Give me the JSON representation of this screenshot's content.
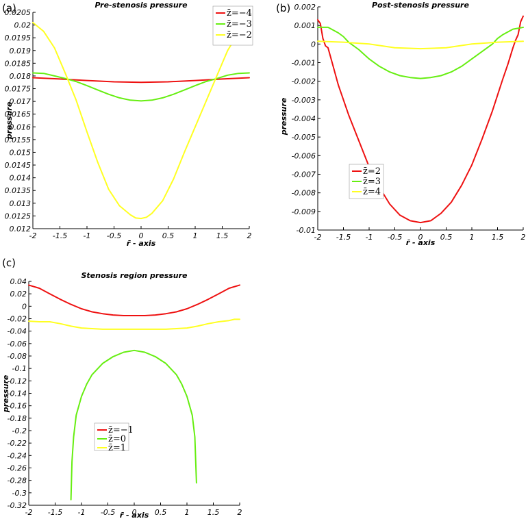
{
  "colors": {
    "red": "#ee1111",
    "green": "#66ee11",
    "yellow": "#ffff22"
  },
  "chart_data": [
    {
      "panel_label": "(a)",
      "type": "line",
      "title": "Pre-stenosis pressure",
      "xlabel": "r̄ - axis",
      "ylabel": "pressure",
      "xlim": [
        -2,
        2
      ],
      "ylim": [
        0.012,
        0.0205
      ],
      "xticks": [
        "-2",
        "-1.5",
        "-1",
        "-0.5",
        "0",
        "0.5",
        "1",
        "1.5",
        "2"
      ],
      "yticks": [
        "0.0205",
        "0.02",
        "0.0195",
        "0.019",
        "0.0185",
        "0.018",
        "0.0175",
        "0.017",
        "0.0165",
        "0.016",
        "0.0155",
        "0.015",
        "0.0145",
        "0.014",
        "0.0135",
        "0.013",
        "0.0125",
        "0.012"
      ],
      "legend_position": "top-right",
      "series": [
        {
          "name": "z̄=−4",
          "color": "red",
          "x": [
            -2,
            -1.5,
            -1,
            -0.5,
            0,
            0.5,
            1,
            1.5,
            2
          ],
          "y": [
            0.01793,
            0.01788,
            0.01782,
            0.01777,
            0.01775,
            0.01777,
            0.01782,
            0.01788,
            0.01793
          ]
        },
        {
          "name": "z̄=−3",
          "color": "green",
          "x": [
            -2,
            -1.8,
            -1.6,
            -1.4,
            -1.2,
            -1.0,
            -0.8,
            -0.6,
            -0.4,
            -0.2,
            0,
            0.2,
            0.4,
            0.6,
            0.8,
            1.0,
            1.2,
            1.4,
            1.6,
            1.8,
            2
          ],
          "y": [
            0.01812,
            0.0181,
            0.018,
            0.0179,
            0.01778,
            0.01762,
            0.01745,
            0.01728,
            0.01714,
            0.01705,
            0.01702,
            0.01705,
            0.01714,
            0.01728,
            0.01745,
            0.01762,
            0.01778,
            0.0179,
            0.01803,
            0.0181,
            0.01812
          ]
        },
        {
          "name": "z̄=−2",
          "color": "yellow",
          "x": [
            -2,
            -1.8,
            -1.6,
            -1.4,
            -1.2,
            -1.0,
            -0.8,
            -0.6,
            -0.4,
            -0.2,
            -0.1,
            0,
            0.1,
            0.2,
            0.4,
            0.6,
            0.8,
            1.0,
            1.2,
            1.4,
            1.6,
            1.8,
            2
          ],
          "y": [
            0.0201,
            0.01975,
            0.0191,
            0.0181,
            0.01705,
            0.0158,
            0.0146,
            0.01355,
            0.0129,
            0.01255,
            0.01242,
            0.0124,
            0.01245,
            0.0126,
            0.0131,
            0.01395,
            0.015,
            0.016,
            0.017,
            0.018,
            0.019,
            0.0197,
            0.0201
          ]
        }
      ]
    },
    {
      "panel_label": "(b)",
      "type": "line",
      "title": "Post-stenosis pressure",
      "xlabel": "r̄ - axis",
      "ylabel": "pressure",
      "xlim": [
        -2,
        2
      ],
      "ylim": [
        -0.01,
        0.002
      ],
      "xticks": [
        "-2",
        "-1.5",
        "-1",
        "-0.5",
        "0",
        "0.5",
        "1",
        "1.5",
        "2"
      ],
      "yticks": [
        "0.002",
        "0.001",
        "0",
        "-0.001",
        "-0.002",
        "-0.003",
        "-0.004",
        "-0.005",
        "-0.006",
        "-0.007",
        "-0.008",
        "-0.009",
        "-0.01"
      ],
      "legend_position": "center-left",
      "series": [
        {
          "name": "z̄=2",
          "color": "red",
          "x": [
            -2,
            -1.95,
            -1.9,
            -1.85,
            -1.8,
            -1.7,
            -1.6,
            -1.4,
            -1.2,
            -1.0,
            -0.8,
            -0.6,
            -0.4,
            -0.2,
            0,
            0.2,
            0.4,
            0.6,
            0.8,
            1.0,
            1.2,
            1.4,
            1.6,
            1.7,
            1.8,
            1.85,
            1.9,
            1.95,
            2
          ],
          "y": [
            0.0013,
            0.0011,
            0.0003,
            -0.0001,
            -0.0002,
            -0.0012,
            -0.0022,
            -0.0038,
            -0.0052,
            -0.0066,
            -0.0077,
            -0.0086,
            -0.0092,
            -0.0095,
            -0.0096,
            -0.0095,
            -0.0091,
            -0.0085,
            -0.0076,
            -0.0065,
            -0.0051,
            -0.0036,
            -0.0019,
            -0.0011,
            -0.0002,
            0.0002,
            0.0005,
            0.0012,
            0.0015
          ]
        },
        {
          "name": "z̄=3",
          "color": "green",
          "x": [
            -2,
            -1.8,
            -1.6,
            -1.5,
            -1.4,
            -1.2,
            -1.0,
            -0.8,
            -0.6,
            -0.4,
            -0.2,
            0,
            0.2,
            0.4,
            0.6,
            0.8,
            1.0,
            1.2,
            1.4,
            1.5,
            1.6,
            1.8,
            2
          ],
          "y": [
            0.0009,
            0.0009,
            0.0006,
            0.0004,
            0.0001,
            -0.0003,
            -0.0008,
            -0.0012,
            -0.0015,
            -0.0017,
            -0.0018,
            -0.00185,
            -0.0018,
            -0.0017,
            -0.0015,
            -0.0012,
            -0.0008,
            -0.0004,
            0.0,
            0.0003,
            0.0005,
            0.0008,
            0.0009
          ]
        },
        {
          "name": "z̄=4",
          "color": "yellow",
          "x": [
            -2,
            -1.5,
            -1,
            -0.5,
            0,
            0.5,
            1,
            1.5,
            2
          ],
          "y": [
            0.00015,
            0.0001,
            0.0,
            -0.0002,
            -0.00025,
            -0.0002,
            0.0,
            0.0001,
            0.00015
          ]
        }
      ]
    },
    {
      "panel_label": "(c)",
      "type": "line",
      "title": "Stenosis region pressure",
      "xlabel": "r̄ - axis",
      "ylabel": "pressure",
      "xlim": [
        -2,
        2
      ],
      "ylim": [
        -0.32,
        0.04
      ],
      "xticks": [
        "-2",
        "-1.5",
        "-1",
        "-0.5",
        "0",
        "0.5",
        "1",
        "1.5",
        "2"
      ],
      "yticks": [
        "0.04",
        "0.02",
        "0",
        "-0.02",
        "-0.04",
        "-0.06",
        "-0.08",
        "-0.1",
        "-0.12",
        "-0.14",
        "-0.16",
        "-0.18",
        "-0.2",
        "-0.22",
        "-0.24",
        "-0.26",
        "-0.28",
        "-0.3",
        "-0.32"
      ],
      "legend_position": "lower-left",
      "series": [
        {
          "name": "z̄=−1",
          "color": "red",
          "x": [
            -2,
            -1.8,
            -1.6,
            -1.4,
            -1.2,
            -1.0,
            -0.8,
            -0.6,
            -0.4,
            -0.2,
            0,
            0.2,
            0.4,
            0.6,
            0.8,
            1.0,
            1.2,
            1.4,
            1.6,
            1.8,
            2
          ],
          "y": [
            0.034,
            0.029,
            0.02,
            0.011,
            0.003,
            -0.004,
            -0.009,
            -0.012,
            -0.014,
            -0.015,
            -0.015,
            -0.015,
            -0.014,
            -0.012,
            -0.009,
            -0.004,
            0.003,
            0.011,
            0.02,
            0.029,
            0.034
          ]
        },
        {
          "name": "z̄=0",
          "color": "green",
          "x": [
            -1.2,
            -1.18,
            -1.15,
            -1.1,
            -1.0,
            -0.9,
            -0.8,
            -0.6,
            -0.4,
            -0.2,
            0,
            0.2,
            0.4,
            0.6,
            0.8,
            0.9,
            1.0,
            1.1,
            1.15,
            1.18
          ],
          "y": [
            -0.311,
            -0.25,
            -0.21,
            -0.175,
            -0.145,
            -0.125,
            -0.11,
            -0.092,
            -0.081,
            -0.074,
            -0.071,
            -0.074,
            -0.081,
            -0.092,
            -0.11,
            -0.125,
            -0.145,
            -0.175,
            -0.21,
            -0.284
          ]
        },
        {
          "name": "z̄=1",
          "color": "yellow",
          "x": [
            -2,
            -1.8,
            -1.6,
            -1.4,
            -1.2,
            -1.0,
            -0.8,
            -0.6,
            -0.4,
            -0.2,
            0,
            0.2,
            0.4,
            0.6,
            0.8,
            1.0,
            1.2,
            1.4,
            1.6,
            1.8,
            1.9,
            2
          ],
          "y": [
            -0.024,
            -0.025,
            -0.025,
            -0.028,
            -0.032,
            -0.035,
            -0.036,
            -0.037,
            -0.037,
            -0.037,
            -0.037,
            -0.037,
            -0.037,
            -0.037,
            -0.036,
            -0.035,
            -0.032,
            -0.028,
            -0.025,
            -0.023,
            -0.021,
            -0.021
          ]
        }
      ]
    }
  ]
}
